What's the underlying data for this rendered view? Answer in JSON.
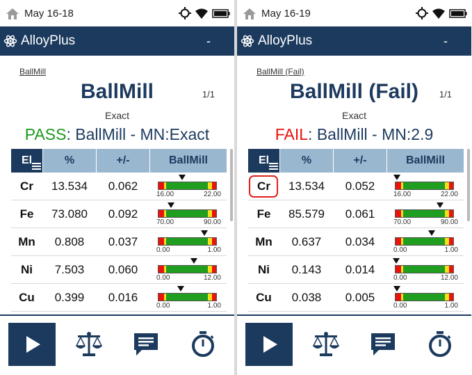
{
  "screens": [
    {
      "status": {
        "date": "May 16-18"
      },
      "app": {
        "title": "AlloyPlus",
        "minus": "-"
      },
      "result": {
        "breadcrumb": "BallMill",
        "title": "BallMill",
        "counter": "1/1",
        "match_type": "Exact",
        "verdict_label": "PASS",
        "verdict_text": ": BallMill - MN:Exact",
        "verdict_color": "#1a9a1a"
      },
      "table": {
        "headers": {
          "element": "El",
          "percent": "%",
          "error": "+/-",
          "alloy": "BallMill"
        },
        "rows": [
          {
            "el": "Cr",
            "pct": "13.534",
            "err": "0.062",
            "lo": "16.00",
            "hi": "22.00",
            "marker": 0.42,
            "flagged": false
          },
          {
            "el": "Fe",
            "pct": "73.080",
            "err": "0.092",
            "lo": "70.00",
            "hi": "90.00",
            "marker": 0.23,
            "flagged": false
          },
          {
            "el": "Mn",
            "pct": "0.808",
            "err": "0.037",
            "lo": "0.00",
            "hi": "1.00",
            "marker": 0.81,
            "flagged": false
          },
          {
            "el": "Ni",
            "pct": "7.503",
            "err": "0.060",
            "lo": "0.00",
            "hi": "12.00",
            "marker": 0.62,
            "flagged": false
          },
          {
            "el": "Cu",
            "pct": "0.399",
            "err": "0.016",
            "lo": "0.00",
            "hi": "1.00",
            "marker": 0.4,
            "flagged": false
          }
        ]
      }
    },
    {
      "status": {
        "date": "May 16-19"
      },
      "app": {
        "title": "AlloyPlus",
        "minus": "-"
      },
      "result": {
        "breadcrumb": "BallMill (Fail)",
        "title": "BallMill (Fail)",
        "counter": "1/1",
        "match_type": "Exact",
        "verdict_label": "FAIL",
        "verdict_text": ": BallMill - MN:2.9",
        "verdict_color": "#e8120c"
      },
      "table": {
        "headers": {
          "element": "El",
          "percent": "%",
          "error": "+/-",
          "alloy": "BallMill"
        },
        "rows": [
          {
            "el": "Cr",
            "pct": "13.534",
            "err": "0.052",
            "lo": "16.00",
            "hi": "22.00",
            "marker": 0.03,
            "flagged": true
          },
          {
            "el": "Fe",
            "pct": "85.579",
            "err": "0.061",
            "lo": "70.00",
            "hi": "90.00",
            "marker": 0.78,
            "flagged": false
          },
          {
            "el": "Mn",
            "pct": "0.637",
            "err": "0.034",
            "lo": "0.00",
            "hi": "1.00",
            "marker": 0.64,
            "flagged": false
          },
          {
            "el": "Ni",
            "pct": "0.143",
            "err": "0.014",
            "lo": "0.00",
            "hi": "12.00",
            "marker": 0.02,
            "flagged": false
          },
          {
            "el": "Cu",
            "pct": "0.038",
            "err": "0.005",
            "lo": "0.00",
            "hi": "1.00",
            "marker": 0.04,
            "flagged": false
          }
        ]
      }
    }
  ],
  "toolbar": {
    "icons": [
      "play-icon",
      "balance-scale-icon",
      "message-icon",
      "stopwatch-icon"
    ]
  },
  "colors": {
    "navy": "#1c3a5e",
    "header_blue": "#9ab7d0",
    "pass": "#1a9a1a",
    "fail": "#e8120c",
    "bar_green": "#1f9e1f",
    "bar_yellow": "#f3df1a",
    "bar_red": "#e8140c"
  }
}
